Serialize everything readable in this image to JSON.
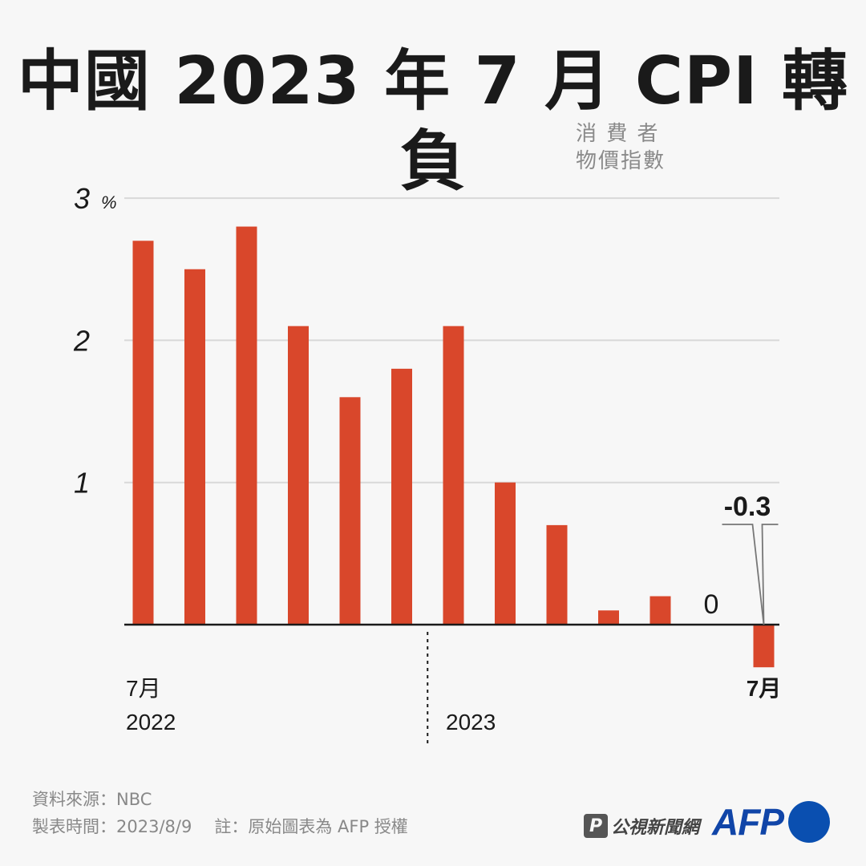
{
  "title": "中國 2023 年 7 月 CPI 轉負",
  "unit_note": {
    "line1": "消 費 者",
    "line2": "物價指數"
  },
  "chart_data": {
    "type": "bar",
    "title": "中國 2023 年 7 月 CPI 轉負",
    "ylabel_unit": "%",
    "ylim": [
      -0.3,
      3
    ],
    "yticks": [
      {
        "value": 3,
        "label": "3"
      },
      {
        "value": 2,
        "label": "2"
      },
      {
        "value": 1,
        "label": "1"
      }
    ],
    "categories": [
      "2022-07",
      "2022-08",
      "2022-09",
      "2022-10",
      "2022-11",
      "2022-12",
      "2023-01",
      "2023-02",
      "2023-03",
      "2023-04",
      "2023-05",
      "2023-06",
      "2023-07"
    ],
    "values": [
      2.7,
      2.5,
      2.8,
      2.1,
      1.6,
      1.8,
      2.1,
      1.0,
      0.7,
      0.1,
      0.2,
      0,
      -0.3
    ],
    "bar_color": "#d9472b",
    "grid": true,
    "x_labels": {
      "start_month": "7月",
      "start_year": "2022",
      "year_break": "2023",
      "end_month": "7月"
    },
    "annotations": [
      {
        "category": "2023-06",
        "text": "0"
      },
      {
        "category": "2023-07",
        "text": "-0.3"
      }
    ]
  },
  "footer": {
    "source": "資料來源：NBC",
    "made_time": "製表時間：2023/8/9",
    "note": "註：原始圖表為 AFP 授權"
  },
  "logos": {
    "pts_mark": "P",
    "pts_text": "公視新聞網",
    "afp_text": "AFP",
    "afp_color": "#0a4fb0"
  }
}
